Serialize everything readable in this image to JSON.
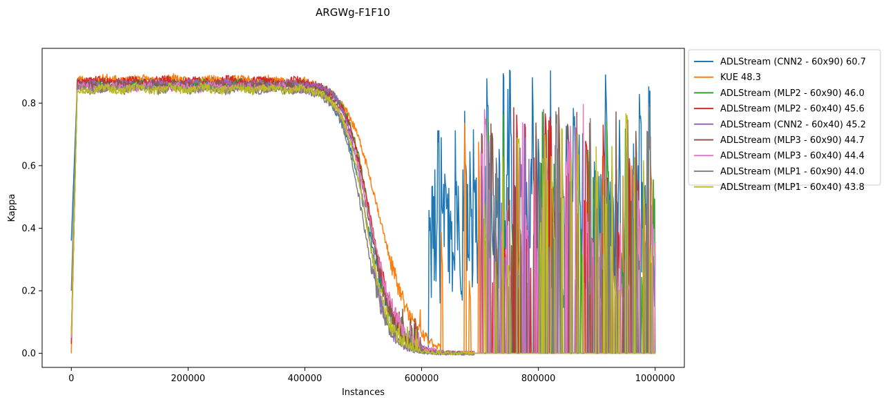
{
  "chart_data": {
    "type": "line",
    "title": "ARGWg-F1F10",
    "xlabel": "Instances",
    "ylabel": "Kappa",
    "xlim": [
      -50000,
      1050000
    ],
    "ylim": [
      -0.045,
      0.975
    ],
    "xticks": [
      0,
      200000,
      400000,
      600000,
      800000,
      1000000
    ],
    "xtick_labels": [
      "0",
      "200000",
      "400000",
      "600000",
      "800000",
      "1000000"
    ],
    "yticks": [
      0.0,
      0.2,
      0.4,
      0.6,
      0.8
    ],
    "ytick_labels": [
      "0.0",
      "0.2",
      "0.4",
      "0.6",
      "0.8"
    ],
    "grid": false,
    "legend_position": "outside-right-top",
    "series": [
      {
        "name": "ADLStream (CNN2 - 60x90) 60.7",
        "color": "#1f77b4",
        "plateau": 0.865,
        "drop_mid": 505000,
        "drop_width": 24000,
        "revival_start": 612000,
        "revival_freq": 0.9,
        "revival_peak": 0.72,
        "seed": 11,
        "start": 0.36
      },
      {
        "name": "KUE 48.3",
        "color": "#ff7f0e",
        "plateau": 0.875,
        "drop_mid": 528000,
        "drop_width": 28000,
        "revival_start": 632000,
        "revival_freq": 0.2,
        "revival_peak": 0.55,
        "seed": 23,
        "start": 0.0
      },
      {
        "name": "ADLStream (MLP2 - 60x90) 46.0",
        "color": "#2ca02c",
        "plateau": 0.86,
        "drop_mid": 512000,
        "drop_width": 20000,
        "revival_start": 690000,
        "revival_freq": 0.34,
        "revival_peak": 0.6,
        "seed": 37,
        "start": 0.05
      },
      {
        "name": "ADLStream (MLP2 - 60x40) 45.6",
        "color": "#d62728",
        "plateau": 0.87,
        "drop_mid": 512000,
        "drop_width": 22000,
        "revival_start": 690000,
        "revival_freq": 0.34,
        "revival_peak": 0.6,
        "seed": 41,
        "start": 0.03
      },
      {
        "name": "ADLStream (CNN2 - 60x40) 45.2",
        "color": "#9467bd",
        "plateau": 0.86,
        "drop_mid": 505000,
        "drop_width": 18000,
        "revival_start": 690000,
        "revival_freq": 0.34,
        "revival_peak": 0.6,
        "seed": 53,
        "start": 0.05
      },
      {
        "name": "ADLStream (MLP3 - 60x90) 44.7",
        "color": "#8c564b",
        "plateau": 0.855,
        "drop_mid": 510000,
        "drop_width": 22000,
        "revival_start": 690000,
        "revival_freq": 0.34,
        "revival_peak": 0.6,
        "seed": 67,
        "start": 0.04
      },
      {
        "name": "ADLStream (MLP3 - 60x40) 44.4",
        "color": "#e377c2",
        "plateau": 0.85,
        "drop_mid": 512000,
        "drop_width": 24000,
        "revival_start": 690000,
        "revival_freq": 0.34,
        "revival_peak": 0.6,
        "seed": 79,
        "start": 0.05
      },
      {
        "name": "ADLStream (MLP1 - 60x90) 44.0",
        "color": "#7f7f7f",
        "plateau": 0.845,
        "drop_mid": 500000,
        "drop_width": 20000,
        "revival_start": 690000,
        "revival_freq": 0.34,
        "revival_peak": 0.6,
        "seed": 83,
        "start": 0.2
      },
      {
        "name": "ADLStream (MLP1 - 60x40) 43.8",
        "color": "#bcbd22",
        "plateau": 0.845,
        "drop_mid": 505000,
        "drop_width": 20000,
        "revival_start": 690000,
        "revival_freq": 0.34,
        "revival_peak": 0.62,
        "seed": 97,
        "start": 0.06
      }
    ],
    "x_max": 1000000,
    "n_points": 1000
  }
}
